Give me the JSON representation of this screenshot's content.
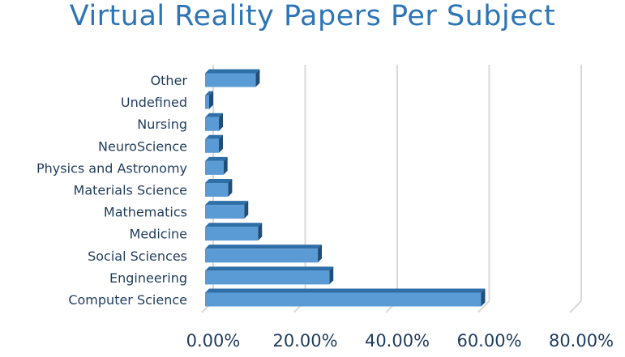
{
  "chart_data": {
    "type": "bar",
    "orientation": "horizontal",
    "title": "Virtual Reality Papers Per Subject",
    "categories": [
      "Computer Science",
      "Engineering",
      "Social Sciences",
      "Medicine",
      "Mathematics",
      "Materials Science",
      "Physics and Astronomy",
      "NeuroScience",
      "Nursing",
      "Undefined",
      "Other"
    ],
    "values": [
      0.6,
      0.27,
      0.245,
      0.115,
      0.085,
      0.05,
      0.04,
      0.03,
      0.03,
      0.008,
      0.11
    ],
    "xlim": [
      0,
      0.8
    ],
    "xticks": [
      0,
      0.2,
      0.4,
      0.6,
      0.8
    ],
    "xtick_labels": [
      "0.00%",
      "20.00%",
      "40.00%",
      "60.00%",
      "80.00%"
    ],
    "xlabel": "",
    "ylabel": "",
    "grid": true,
    "legend": "none",
    "colors": {
      "bar_front": "#5b9bd5",
      "bar_top": "#2f6fa8",
      "bar_side": "#1f4e79",
      "grid": "#d9d9d9",
      "title": "#2e75b6",
      "text": "#1f3c5c"
    }
  }
}
